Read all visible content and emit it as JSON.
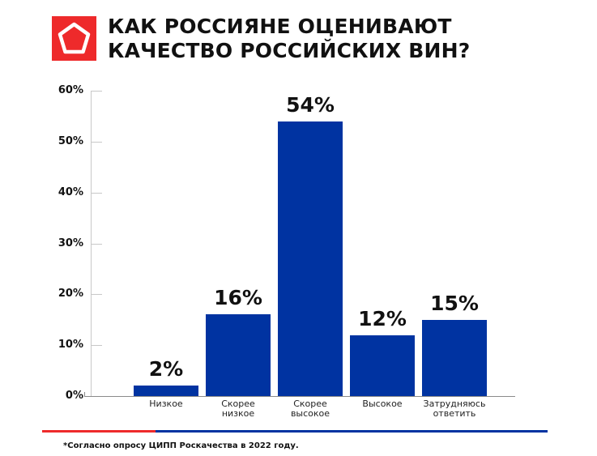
{
  "header": {
    "title_line1": "КАК РОССИЯНЕ ОЦЕНИВАЮТ",
    "title_line2": "КАЧЕСТВО РОССИЙСКИХ ВИН?",
    "logo_icon": "pentagon-logo-icon",
    "brand_red": "#ee2a2b"
  },
  "axis": {
    "y_ticks": [
      "0%",
      "10%",
      "20%",
      "30%",
      "40%",
      "50%",
      "60%"
    ]
  },
  "bars": [
    {
      "category": "Низкое",
      "category_line1": "Низкое",
      "category_line2": "",
      "value": 2,
      "label": "2%"
    },
    {
      "category": "Скорее низкое",
      "category_line1": "Скорее",
      "category_line2": "низкое",
      "value": 16,
      "label": "16%"
    },
    {
      "category": "Скорее высокое",
      "category_line1": "Скорее",
      "category_line2": "высокое",
      "value": 54,
      "label": "54%"
    },
    {
      "category": "Высокое",
      "category_line1": "Высокое",
      "category_line2": "",
      "value": 12,
      "label": "12%"
    },
    {
      "category": "Затрудняюсь ответить",
      "category_line1": "Затрудняюсь",
      "category_line2": "ответить",
      "value": 15,
      "label": "15%"
    }
  ],
  "footnote": "*Согласно опросу ЦИПП Роскачества в 2022 году.",
  "colors": {
    "bar": "#0033a1",
    "stripe_red": "#ee2a2b",
    "stripe_blue": "#0033a1"
  },
  "chart_data": {
    "type": "bar",
    "title": "КАК РОССИЯНЕ ОЦЕНИВАЮТ КАЧЕСТВО РОССИЙСКИХ ВИН?",
    "categories": [
      "Низкое",
      "Скорее низкое",
      "Скорее высокое",
      "Высокое",
      "Затрудняюсь ответить"
    ],
    "values": [
      2,
      16,
      54,
      12,
      15
    ],
    "data_labels": [
      "2%",
      "16%",
      "54%",
      "12%",
      "15%"
    ],
    "xlabel": "",
    "ylabel": "",
    "ylim": [
      0,
      60
    ],
    "y_ticks": [
      0,
      10,
      20,
      30,
      40,
      50,
      60
    ],
    "y_tick_format": "percent",
    "grid": false,
    "legend": null,
    "footnote": "*Согласно опросу ЦИПП Роскачества в 2022 году."
  }
}
